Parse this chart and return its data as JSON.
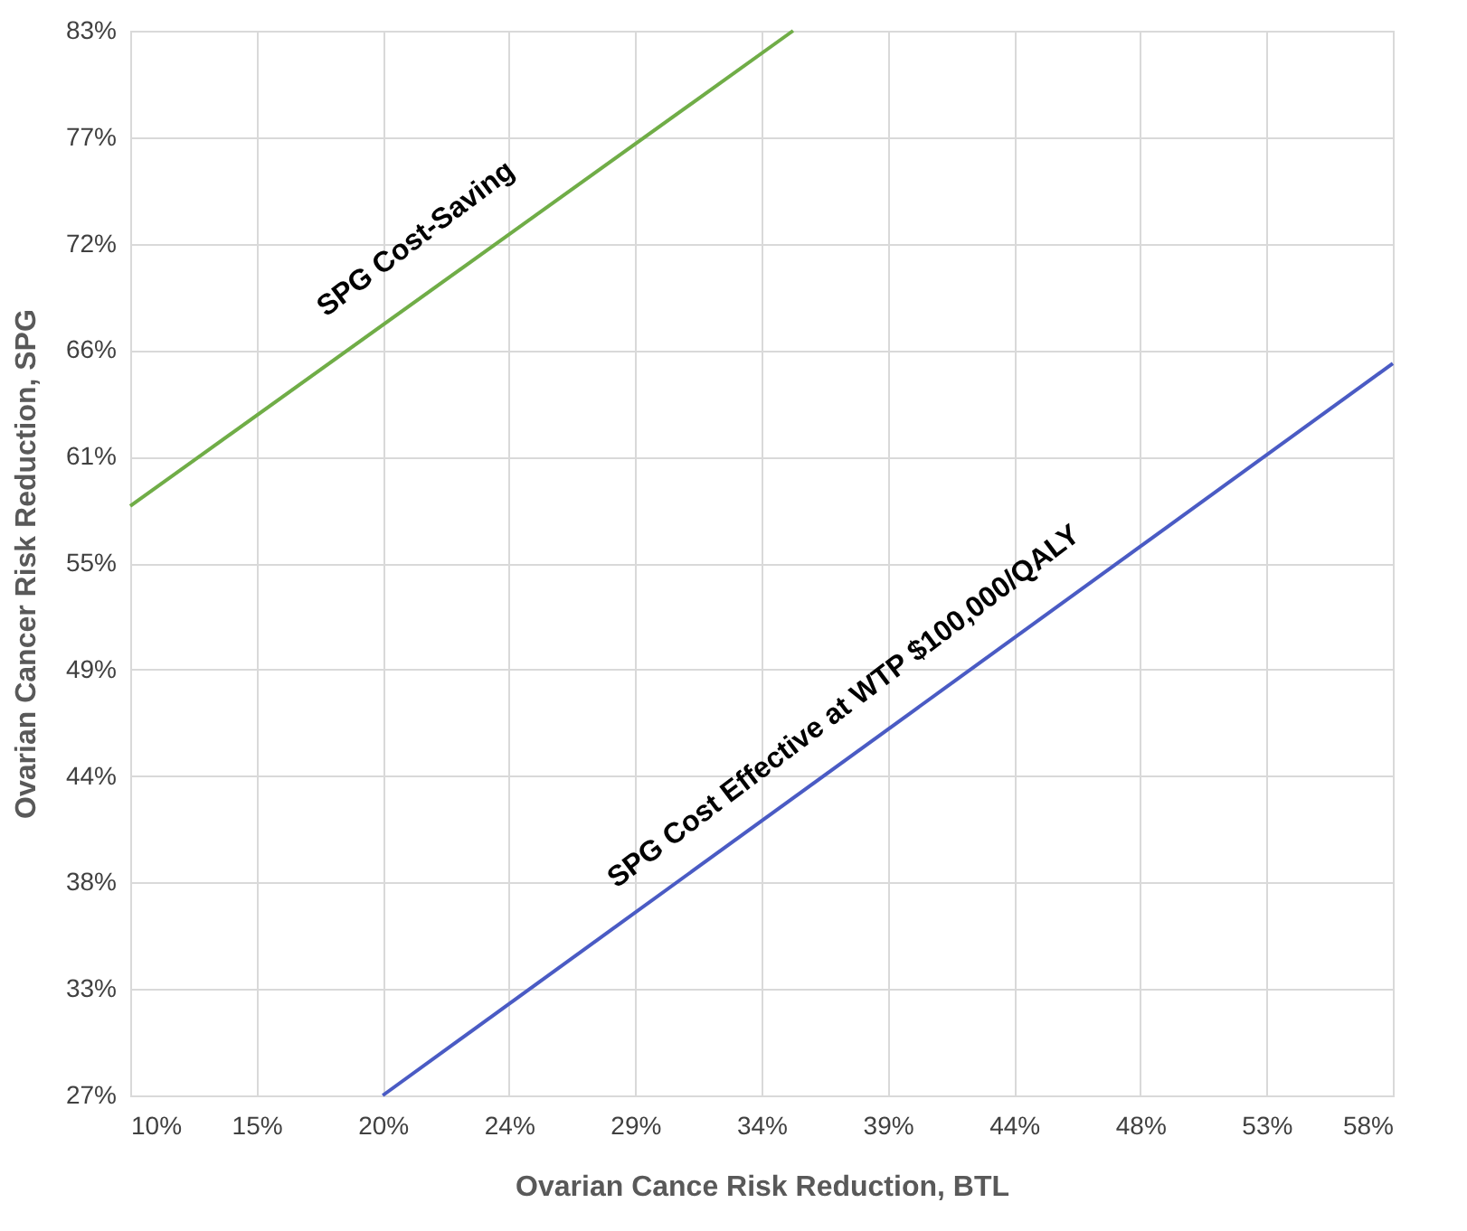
{
  "chart_data": {
    "type": "line",
    "xlabel": "Ovarian Cance Risk Reduction, BTL",
    "ylabel": "Ovarian Cancer Risk Reduction, SPG",
    "xlim": [
      10,
      58
    ],
    "ylim": [
      27,
      83
    ],
    "xticks": [
      {
        "value": 10,
        "label": "10%"
      },
      {
        "value": 14.8,
        "label": "15%"
      },
      {
        "value": 19.6,
        "label": "20%"
      },
      {
        "value": 24.4,
        "label": "24%"
      },
      {
        "value": 29.2,
        "label": "29%"
      },
      {
        "value": 34,
        "label": "34%"
      },
      {
        "value": 38.8,
        "label": "39%"
      },
      {
        "value": 43.6,
        "label": "44%"
      },
      {
        "value": 48.4,
        "label": "48%"
      },
      {
        "value": 53.2,
        "label": "53%"
      },
      {
        "value": 58,
        "label": "58%"
      }
    ],
    "yticks": [
      {
        "value": 27,
        "label": "27%"
      },
      {
        "value": 32.6,
        "label": "33%"
      },
      {
        "value": 38.2,
        "label": "38%"
      },
      {
        "value": 43.8,
        "label": "44%"
      },
      {
        "value": 49.4,
        "label": "49%"
      },
      {
        "value": 55,
        "label": "55%"
      },
      {
        "value": 60.6,
        "label": "61%"
      },
      {
        "value": 66.2,
        "label": "66%"
      },
      {
        "value": 71.8,
        "label": "72%"
      },
      {
        "value": 77.4,
        "label": "77%"
      },
      {
        "value": 83,
        "label": "83%"
      }
    ],
    "series": [
      {
        "color": "#70ad47",
        "x": [
          10,
          35.2
        ],
        "values": [
          58,
          83
        ]
      },
      {
        "color": "#4a5bc4",
        "x": [
          19.6,
          58
        ],
        "values": [
          27,
          65.5
        ]
      }
    ],
    "annotations": [
      "SPG Cost-Saving",
      "SPG Cost Effective at WTP $100,000/QALY"
    ],
    "grid": true,
    "marker": "none",
    "line_style": "solid"
  }
}
